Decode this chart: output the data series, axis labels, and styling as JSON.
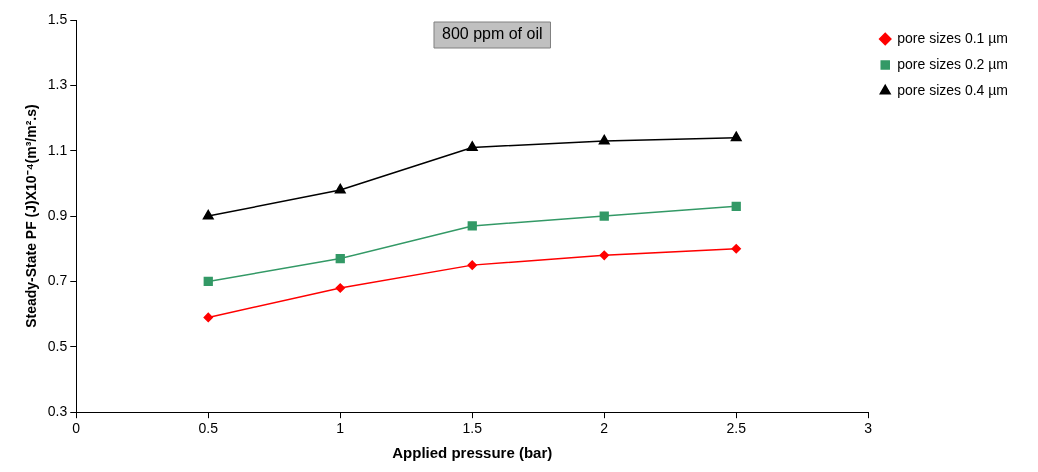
{
  "chart_data": {
    "type": "line",
    "title": "800 ppm of oil",
    "xlabel": "Applied pressure (bar)",
    "ylabel": "Steady-State PF (J)X10⁻⁴(m³/m².s)",
    "x": [
      0.5,
      1,
      1.5,
      2,
      2.5
    ],
    "series": [
      {
        "name": "pore sizes 0.1 µm",
        "color": "#ff0000",
        "marker": "diamond",
        "values": [
          0.59,
          0.68,
          0.75,
          0.78,
          0.8
        ]
      },
      {
        "name": "pore sizes 0.2 µm",
        "color": "#339966",
        "marker": "square",
        "values": [
          0.7,
          0.77,
          0.87,
          0.9,
          0.93
        ]
      },
      {
        "name": "pore sizes 0.4 µm",
        "color": "#000000",
        "marker": "triangle",
        "values": [
          0.9,
          0.98,
          1.11,
          1.13,
          1.14
        ]
      }
    ],
    "xlim": [
      0,
      3
    ],
    "xticks": [
      0,
      0.5,
      1,
      1.5,
      2,
      2.5,
      3
    ],
    "ylim": [
      0.3,
      1.5
    ],
    "yticks": [
      0.3,
      0.5,
      0.7,
      0.9,
      1.1,
      1.3,
      1.5
    ],
    "grid": false,
    "legend": "top right",
    "line_style": "solid"
  }
}
